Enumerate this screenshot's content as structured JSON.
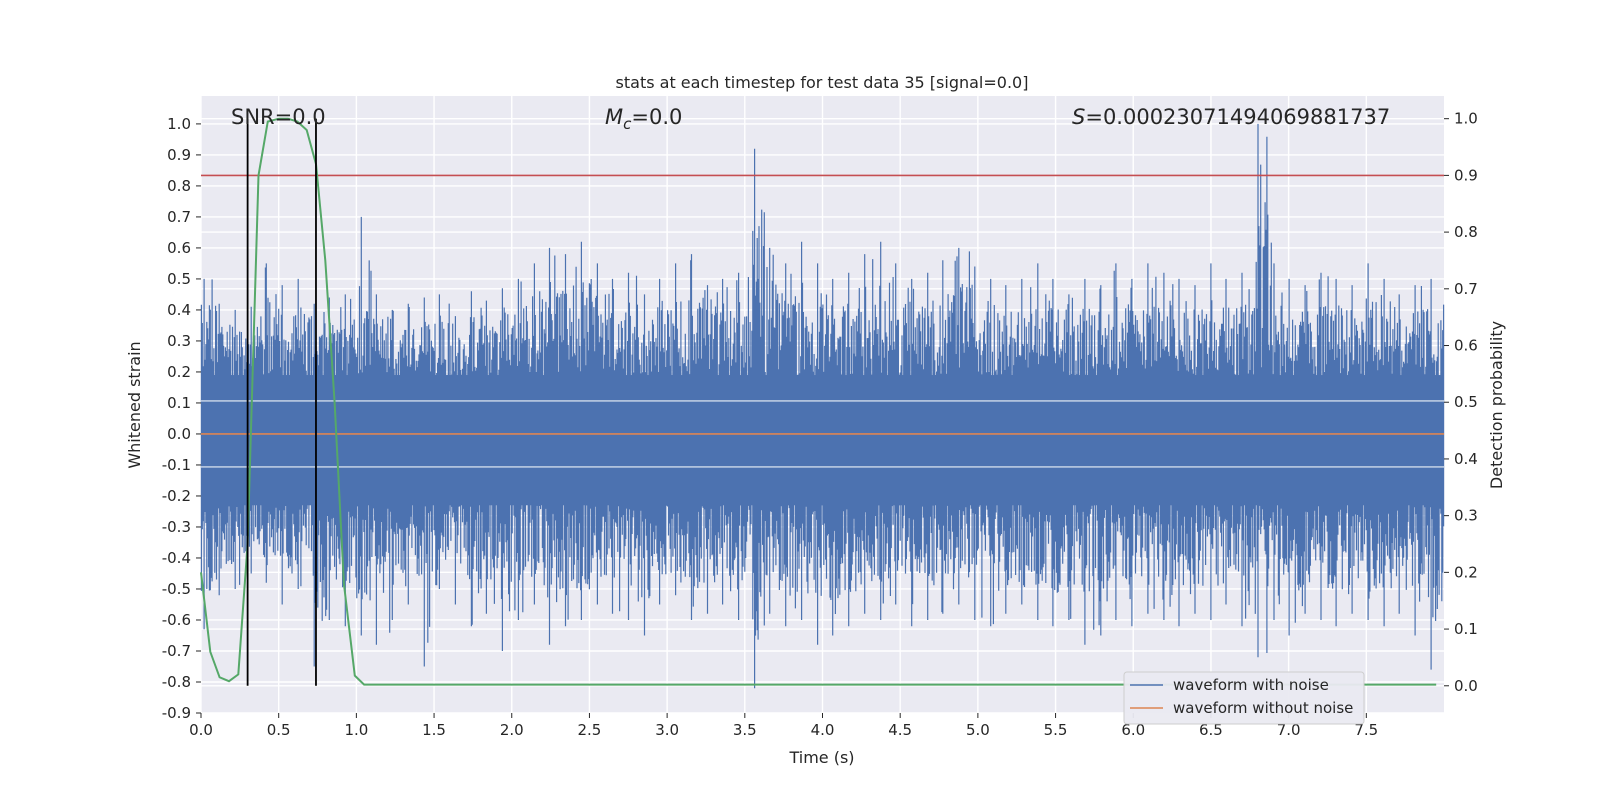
{
  "chart_data": {
    "type": "line",
    "title": "stats at each timestep for test data 35 [signal=0.0]",
    "xlabel": "Time (s)",
    "ylabel_left": "Whitened strain",
    "ylabel_right": "Detection probability",
    "xlim": [
      0.0,
      8.0
    ],
    "ylim_left": [
      -0.9,
      1.09
    ],
    "ylim_right": [
      -0.048,
      1.04
    ],
    "x_ticks": [
      "0.0",
      "0.5",
      "1.0",
      "1.5",
      "2.0",
      "2.5",
      "3.0",
      "3.5",
      "4.0",
      "4.5",
      "5.0",
      "5.5",
      "6.0",
      "6.5",
      "7.0",
      "7.5"
    ],
    "y_ticks_left": [
      "-0.9",
      "-0.8",
      "-0.7",
      "-0.6",
      "-0.5",
      "-0.4",
      "-0.3",
      "-0.2",
      "-0.1",
      "0.0",
      "0.1",
      "0.2",
      "0.3",
      "0.4",
      "0.5",
      "0.6",
      "0.7",
      "0.8",
      "0.9",
      "1.0"
    ],
    "y_ticks_right": [
      "0.0",
      "0.1",
      "0.2",
      "0.3",
      "0.4",
      "0.5",
      "0.6",
      "0.7",
      "0.8",
      "0.9",
      "1.0"
    ],
    "annotations": {
      "snr": "SNR=0.0",
      "mc_symbol": "M",
      "mc_sub": "c",
      "mc_value": "=0.0",
      "s_symbol": "S",
      "s_value": "=0.00023071494069881737"
    },
    "threshold": {
      "axis": "right",
      "value": 0.9,
      "color": "#c44e52"
    },
    "vertical_lines": {
      "x": [
        0.3,
        0.74
      ],
      "color": "#000000"
    },
    "series": [
      {
        "name": "waveform with noise",
        "axis": "left",
        "color": "#4c72b0",
        "envelope_upper": [
          0.5,
          0.42,
          0.4,
          0.41,
          0.55,
          0.48,
          0.5,
          0.42,
          0.44,
          0.45,
          0.7,
          0.45,
          0.4,
          0.42,
          0.44,
          0.45,
          0.38,
          0.46,
          0.43,
          0.47,
          0.5,
          0.55,
          0.6,
          0.58,
          0.62,
          0.55,
          0.5,
          0.52,
          0.45,
          0.5,
          0.55,
          0.58,
          0.48,
          0.5,
          0.52,
          0.92,
          0.6,
          0.55,
          0.62,
          0.55,
          0.5,
          0.52,
          0.58,
          0.62,
          0.55,
          0.5,
          0.52,
          0.56,
          0.6,
          0.54,
          0.5,
          0.48,
          0.5,
          0.55,
          0.5,
          0.45,
          0.5,
          0.48,
          0.55,
          0.5,
          0.55,
          0.52,
          0.5,
          0.48,
          0.55,
          0.5,
          0.52,
          1.0,
          0.55,
          0.5,
          0.48,
          0.52,
          0.5,
          0.48,
          0.55,
          0.5,
          0.45,
          0.48,
          0.5
        ],
        "envelope_lower": [
          -0.63,
          -0.52,
          -0.5,
          -0.45,
          -0.48,
          -0.55,
          -0.5,
          -0.75,
          -0.6,
          -0.62,
          -0.65,
          -0.68,
          -0.6,
          -0.55,
          -0.75,
          -0.5,
          -0.55,
          -0.62,
          -0.58,
          -0.7,
          -0.6,
          -0.55,
          -0.68,
          -0.62,
          -0.6,
          -0.55,
          -0.58,
          -0.6,
          -0.65,
          -0.55,
          -0.52,
          -0.6,
          -0.58,
          -0.55,
          -0.6,
          -0.82,
          -0.58,
          -0.62,
          -0.6,
          -0.68,
          -0.65,
          -0.62,
          -0.58,
          -0.6,
          -0.55,
          -0.62,
          -0.6,
          -0.58,
          -0.55,
          -0.6,
          -0.62,
          -0.58,
          -0.55,
          -0.6,
          -0.62,
          -0.6,
          -0.68,
          -0.65,
          -0.6,
          -0.62,
          -0.58,
          -0.6,
          -0.62,
          -0.58,
          -0.6,
          -0.55,
          -0.62,
          -0.72,
          -0.6,
          -0.65,
          -0.58,
          -0.6,
          -0.62,
          -0.58,
          -0.6,
          -0.62,
          -0.58,
          -0.65,
          -0.76
        ]
      },
      {
        "name": "waveform without noise",
        "axis": "left",
        "color": "#dd8452",
        "x": [
          0.0,
          8.0
        ],
        "y": [
          0.0,
          0.0
        ]
      },
      {
        "name": "detection probability",
        "axis": "right",
        "color": "#55a868",
        "x": [
          0.0,
          0.06,
          0.12,
          0.18,
          0.24,
          0.3,
          0.37,
          0.43,
          0.5,
          0.56,
          0.62,
          0.68,
          0.74,
          0.8,
          0.86,
          0.92,
          0.99,
          1.05,
          1.5,
          2.0,
          3.0,
          4.0,
          5.0,
          6.0,
          7.0,
          7.95
        ],
        "y": [
          0.2,
          0.06,
          0.015,
          0.008,
          0.02,
          0.25,
          0.9,
          0.995,
          1.0,
          1.0,
          0.995,
          0.98,
          0.92,
          0.75,
          0.5,
          0.18,
          0.018,
          0.002,
          0.002,
          0.002,
          0.002,
          0.002,
          0.002,
          0.002,
          0.002,
          0.002
        ]
      }
    ],
    "legend": {
      "position": "lower right",
      "entries": [
        {
          "label": "waveform with noise",
          "color": "#4c72b0"
        },
        {
          "label": "waveform without noise",
          "color": "#dd8452"
        }
      ]
    },
    "grid": true,
    "background": "#eaeaf2",
    "grid_color": "#ffffff"
  }
}
